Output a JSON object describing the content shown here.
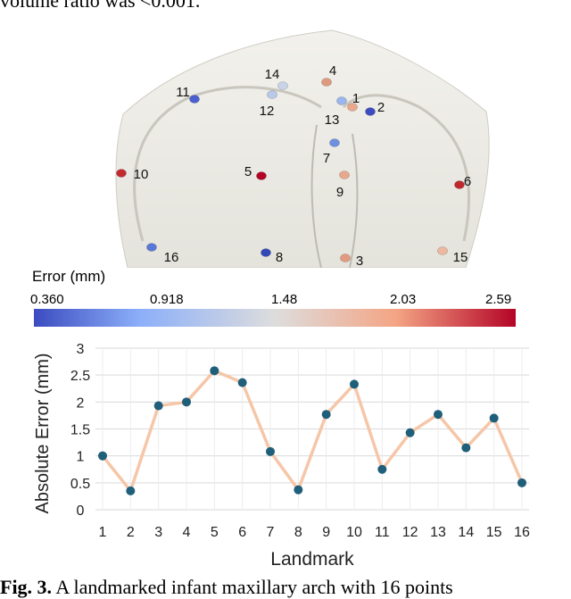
{
  "text_top": "volume ratio was <0.001.",
  "text_bottom_bold": "Fig. 3.",
  "text_bottom_rest": " A landmarked infant maxillary arch with 16 points",
  "landmarks": [
    {
      "label": "1",
      "color": "#e9a88c"
    },
    {
      "label": "2",
      "color": "#3b4cc0"
    },
    {
      "label": "3",
      "color": "#e39a80"
    },
    {
      "label": "4",
      "color": "#dd9a7f"
    },
    {
      "label": "5",
      "color": "#b40426"
    },
    {
      "label": "6",
      "color": "#c0282d"
    },
    {
      "label": "7",
      "color": "#6f8fdf"
    },
    {
      "label": "8",
      "color": "#3349b8"
    },
    {
      "label": "9",
      "color": "#e9a88c"
    },
    {
      "label": "10",
      "color": "#c22a30"
    },
    {
      "label": "11",
      "color": "#4b5fcf"
    },
    {
      "label": "12",
      "color": "#b9c9ea"
    },
    {
      "label": "13",
      "color": "#9bb5ee"
    },
    {
      "label": "14",
      "color": "#c9d4ea"
    },
    {
      "label": "15",
      "color": "#edb89f"
    },
    {
      "label": "16",
      "color": "#5878d8"
    }
  ],
  "colorbar": {
    "title": "Error (mm)",
    "ticks": [
      "0.360",
      "0.918",
      "1.48",
      "2.03",
      "2.59"
    ],
    "min_color": "#3b4cc0",
    "mid_color": "#dddddd",
    "max_color": "#b40426"
  },
  "chart_data": {
    "type": "line",
    "x": [
      1,
      2,
      3,
      4,
      5,
      6,
      7,
      8,
      9,
      10,
      11,
      12,
      13,
      14,
      15,
      16
    ],
    "series": [
      {
        "values": [
          1.0,
          0.35,
          1.93,
          2.0,
          2.58,
          2.36,
          1.08,
          0.37,
          1.77,
          2.33,
          0.75,
          1.43,
          1.77,
          1.15,
          1.7,
          0.5
        ]
      }
    ],
    "xlabel": "Landmark",
    "ylabel": "Absolute Error (mm)",
    "yticks": [
      "0",
      "0.5",
      "1",
      "1.5",
      "2",
      "2.5",
      "3"
    ],
    "ylim": [
      0,
      3
    ],
    "grid": true,
    "line_color": "#f6c6a8",
    "marker_color": "#1f5f7a"
  }
}
